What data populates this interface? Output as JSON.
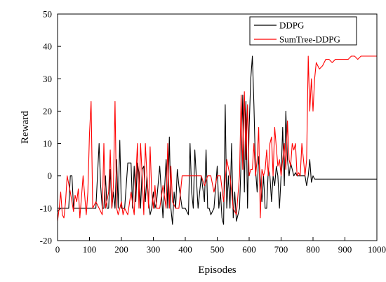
{
  "chart_data": {
    "type": "line",
    "title": "",
    "xlabel": "Episodes",
    "ylabel": "Reward",
    "xlim": [
      0,
      1000
    ],
    "ylim": [
      -20,
      50
    ],
    "xticks": [
      0,
      100,
      200,
      300,
      400,
      500,
      600,
      700,
      800,
      900,
      1000
    ],
    "yticks": [
      -20,
      -10,
      0,
      10,
      20,
      30,
      40,
      50
    ],
    "grid": false,
    "legend_position": "top-right",
    "series": [
      {
        "name": "DDPG",
        "color": "#000000",
        "x": [
          0,
          10,
          20,
          30,
          35,
          40,
          45,
          50,
          60,
          70,
          80,
          90,
          100,
          110,
          120,
          125,
          130,
          135,
          140,
          145,
          150,
          155,
          160,
          165,
          170,
          175,
          180,
          185,
          190,
          195,
          200,
          205,
          210,
          220,
          230,
          235,
          240,
          245,
          250,
          255,
          260,
          265,
          270,
          275,
          280,
          285,
          290,
          295,
          300,
          305,
          310,
          320,
          330,
          340,
          345,
          350,
          355,
          360,
          365,
          370,
          375,
          380,
          390,
          400,
          410,
          415,
          420,
          425,
          430,
          440,
          450,
          460,
          465,
          470,
          475,
          480,
          490,
          500,
          505,
          510,
          515,
          520,
          525,
          530,
          535,
          540,
          545,
          550,
          555,
          560,
          565,
          570,
          575,
          580,
          585,
          590,
          595,
          600,
          605,
          610,
          615,
          620,
          625,
          630,
          640,
          645,
          650,
          655,
          660,
          665,
          670,
          675,
          680,
          685,
          690,
          695,
          700,
          705,
          710,
          715,
          720,
          725,
          730,
          740,
          745,
          750,
          755,
          760,
          765,
          770,
          775,
          780,
          785,
          790,
          795,
          800,
          805,
          810,
          820,
          830,
          840,
          850,
          860,
          870,
          880,
          890,
          900,
          910,
          920,
          930,
          940,
          950,
          960,
          970,
          980,
          990,
          1000
        ],
        "y": [
          -11,
          -10,
          -10,
          -10,
          -10,
          0,
          0,
          -10,
          -10,
          -10,
          -10,
          -10,
          -10,
          -10,
          -10,
          0,
          10,
          -3,
          -10,
          -10,
          0,
          -10,
          -10,
          2,
          -10,
          -5,
          -10,
          5,
          -10,
          11,
          -10,
          -10,
          -10,
          4,
          4,
          -10,
          3,
          -8,
          4,
          1,
          -10,
          2,
          3,
          -8,
          0,
          -8,
          -12,
          -10,
          -5,
          -10,
          -8,
          3,
          -13,
          5,
          -10,
          12,
          -10,
          -15,
          -5,
          -10,
          2,
          -3,
          -10,
          -10,
          -12,
          10,
          -5,
          -10,
          8,
          -10,
          0,
          -8,
          8,
          -10,
          -10,
          -12,
          -10,
          3,
          -10,
          -5,
          -13,
          -15,
          22,
          -10,
          0,
          -10,
          10,
          -13,
          -5,
          -14,
          -12,
          -10,
          5,
          25,
          -5,
          23,
          -10,
          15,
          30,
          37,
          22,
          2,
          -5,
          6,
          -8,
          0,
          -10,
          -10,
          2,
          0,
          -8,
          0,
          -3,
          3,
          0,
          -10,
          0,
          15,
          -3,
          20,
          5,
          0,
          4,
          0,
          1,
          0,
          0,
          0,
          0,
          0,
          0,
          -3,
          0,
          5,
          -2,
          0,
          -1,
          -1,
          -1,
          -1,
          -1,
          -1,
          -1,
          -1,
          -1,
          -1,
          -1,
          -1,
          -1,
          -1,
          -1,
          -1,
          -1,
          -1,
          -1,
          -1,
          -1
        ]
      },
      {
        "name": "SumTree-DDPG",
        "color": "#ff0000",
        "x": [
          0,
          5,
          10,
          15,
          20,
          25,
          30,
          40,
          50,
          55,
          60,
          65,
          70,
          80,
          90,
          95,
          100,
          105,
          110,
          120,
          130,
          140,
          145,
          150,
          160,
          165,
          170,
          175,
          180,
          185,
          190,
          195,
          200,
          205,
          210,
          220,
          230,
          240,
          250,
          255,
          260,
          265,
          270,
          275,
          280,
          285,
          290,
          295,
          300,
          305,
          310,
          320,
          330,
          340,
          345,
          350,
          355,
          360,
          370,
          380,
          390,
          400,
          410,
          420,
          430,
          440,
          450,
          460,
          470,
          480,
          490,
          500,
          510,
          520,
          530,
          540,
          550,
          560,
          570,
          575,
          580,
          585,
          590,
          595,
          600,
          605,
          610,
          615,
          620,
          625,
          630,
          635,
          640,
          645,
          650,
          655,
          660,
          665,
          670,
          675,
          680,
          690,
          695,
          700,
          705,
          710,
          715,
          720,
          725,
          730,
          735,
          740,
          745,
          750,
          755,
          760,
          765,
          770,
          775,
          780,
          785,
          790,
          795,
          800,
          805,
          810,
          820,
          830,
          840,
          850,
          860,
          870,
          880,
          890,
          900,
          910,
          920,
          930,
          940,
          950,
          960,
          970,
          980,
          990,
          1000
        ],
        "y": [
          -14,
          -10,
          -5,
          -12,
          -13,
          -8,
          0,
          -5,
          -11,
          -6,
          -8,
          -4,
          -13,
          0,
          -12,
          -5,
          13,
          23,
          -10,
          -8,
          -10,
          -12,
          10,
          -10,
          -5,
          8,
          -10,
          -3,
          23,
          -10,
          -12,
          -10,
          -8,
          -12,
          -10,
          -12,
          -5,
          -12,
          10,
          -10,
          10,
          0,
          -12,
          10,
          0,
          -10,
          9,
          -5,
          -10,
          -3,
          -10,
          -10,
          -3,
          -10,
          10,
          -10,
          3,
          -8,
          -10,
          -10,
          0,
          0,
          0,
          0,
          0,
          0,
          0,
          -3,
          0,
          0,
          -5,
          0,
          0,
          -8,
          5,
          0,
          -10,
          -12,
          0,
          25,
          2,
          26,
          5,
          22,
          0,
          2,
          2,
          10,
          0,
          5,
          15,
          -13,
          2,
          0,
          2,
          8,
          0,
          10,
          12,
          0,
          15,
          3,
          5,
          0,
          5,
          10,
          2,
          17,
          5,
          3,
          10,
          8,
          10,
          0,
          1,
          0,
          10,
          5,
          0,
          5,
          37,
          20,
          30,
          20,
          30,
          35,
          33,
          34,
          36,
          36,
          35,
          36,
          36,
          36,
          36,
          36,
          37,
          37,
          36,
          37,
          37,
          37,
          37,
          37,
          37
        ]
      }
    ]
  }
}
